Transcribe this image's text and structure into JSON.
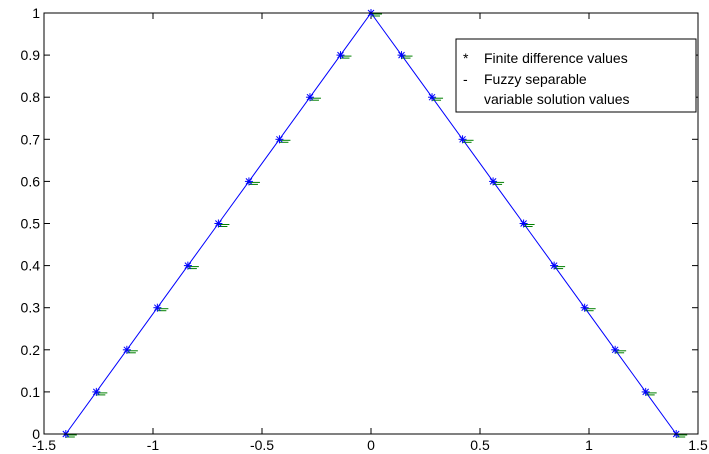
{
  "chart_data": {
    "type": "line",
    "title": "",
    "xlabel": "",
    "ylabel": "",
    "xlim": [
      -1.5,
      1.5
    ],
    "ylim": [
      0,
      1
    ],
    "xticks": [
      "-1.5",
      "-1",
      "-0.5",
      "0",
      "0.5",
      "1",
      "1.5"
    ],
    "yticks": [
      "0",
      "0.1",
      "0.2",
      "0.3",
      "0.4",
      "0.5",
      "0.6",
      "0.7",
      "0.8",
      "0.9",
      "1"
    ],
    "grid": false,
    "legend_position": "top-right",
    "legend": [
      {
        "symbol": "*",
        "label": "Finite difference values"
      },
      {
        "symbol": "-",
        "label": "Fuzzy separable"
      },
      {
        "symbol": "",
        "label": "variable solution values"
      }
    ],
    "series": [
      {
        "name": "Finite difference values",
        "marker": "*",
        "color": "#0000ff",
        "x": [
          -1.4,
          -1.26,
          -1.12,
          -0.98,
          -0.84,
          -0.7,
          -0.56,
          -0.42,
          -0.28,
          -0.14,
          0,
          0.14,
          0.28,
          0.42,
          0.56,
          0.7,
          0.84,
          0.98,
          1.12,
          1.26,
          1.4
        ],
        "y": [
          0,
          0.1,
          0.2,
          0.3,
          0.4,
          0.5,
          0.6,
          0.7,
          0.8,
          0.9,
          1,
          0.9,
          0.8,
          0.7,
          0.6,
          0.5,
          0.4,
          0.3,
          0.2,
          0.1,
          0
        ]
      },
      {
        "name": "Fuzzy separable variable solution values",
        "marker": "-",
        "color": "#008000",
        "x": [
          -1.4,
          -1.26,
          -1.12,
          -0.98,
          -0.84,
          -0.7,
          -0.56,
          -0.42,
          -0.28,
          -0.14,
          0,
          0.14,
          0.28,
          0.42,
          0.56,
          0.7,
          0.84,
          0.98,
          1.12,
          1.26,
          1.4
        ],
        "y": [
          0,
          0.1,
          0.2,
          0.3,
          0.4,
          0.5,
          0.6,
          0.7,
          0.8,
          0.9,
          1,
          0.9,
          0.8,
          0.7,
          0.6,
          0.5,
          0.4,
          0.3,
          0.2,
          0.1,
          0
        ]
      }
    ],
    "line_color": "#0000ff"
  }
}
